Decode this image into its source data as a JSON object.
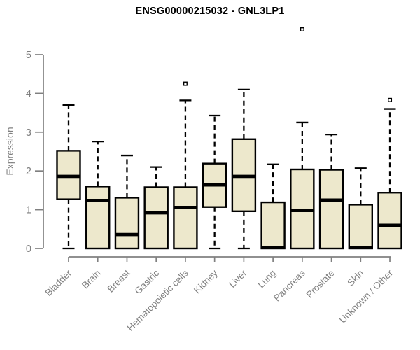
{
  "chart_data": {
    "type": "boxplot",
    "title": "ENSG00000215032 - GNL3LP1",
    "xlabel": "",
    "ylabel": "Expression",
    "ylim": [
      0,
      5
    ],
    "yticks": [
      0,
      1,
      2,
      3,
      4,
      5
    ],
    "grid": "off",
    "legend": "none",
    "colors": {
      "box_fill": "#EDE8CC",
      "box_stroke": "#000000",
      "axis": "#808080",
      "title": "#000000",
      "background": "#FFFFFF",
      "outlier_fill": "#FFFFFF"
    },
    "categories": [
      "Bladder",
      "Brain",
      "Breast",
      "Gastric",
      "Hematopoietic cells",
      "Kidney",
      "Liver",
      "Lung",
      "Pancreas",
      "Prostate",
      "Skin",
      "Unknown / Other"
    ],
    "boxes": [
      {
        "category": "Bladder",
        "whisker_low": 0,
        "q1": 1.27,
        "median": 1.86,
        "q3": 2.52,
        "whisker_high": 3.7,
        "outliers": []
      },
      {
        "category": "Brain",
        "whisker_low": 0,
        "q1": 0,
        "median": 1.24,
        "q3": 1.6,
        "whisker_high": 2.76,
        "outliers": []
      },
      {
        "category": "Breast",
        "whisker_low": 0,
        "q1": 0,
        "median": 0.36,
        "q3": 1.31,
        "whisker_high": 2.4,
        "outliers": []
      },
      {
        "category": "Gastric",
        "whisker_low": 0,
        "q1": 0,
        "median": 0.92,
        "q3": 1.58,
        "whisker_high": 2.1,
        "outliers": []
      },
      {
        "category": "Hematopoietic cells",
        "whisker_low": 0,
        "q1": 0,
        "median": 1.06,
        "q3": 1.58,
        "whisker_high": 3.82,
        "outliers": [
          4.25
        ]
      },
      {
        "category": "Kidney",
        "whisker_low": 0,
        "q1": 1.07,
        "median": 1.64,
        "q3": 2.19,
        "whisker_high": 3.43,
        "outliers": []
      },
      {
        "category": "Liver",
        "whisker_low": 0,
        "q1": 0.96,
        "median": 1.86,
        "q3": 2.82,
        "whisker_high": 4.1,
        "outliers": []
      },
      {
        "category": "Lung",
        "whisker_low": 0,
        "q1": 0,
        "median": 0.03,
        "q3": 1.19,
        "whisker_high": 2.17,
        "outliers": []
      },
      {
        "category": "Pancreas",
        "whisker_low": 0,
        "q1": 0,
        "median": 0.98,
        "q3": 2.04,
        "whisker_high": 3.25,
        "outliers": [
          5.65
        ]
      },
      {
        "category": "Prostate",
        "whisker_low": 0,
        "q1": 0,
        "median": 1.25,
        "q3": 2.03,
        "whisker_high": 2.94,
        "outliers": []
      },
      {
        "category": "Skin",
        "whisker_low": 0,
        "q1": 0,
        "median": 0.03,
        "q3": 1.13,
        "whisker_high": 2.07,
        "outliers": []
      },
      {
        "category": "Unknown / Other",
        "whisker_low": 0,
        "q1": 0,
        "median": 0.6,
        "q3": 1.44,
        "whisker_high": 3.6,
        "outliers": [
          3.83
        ]
      }
    ]
  }
}
